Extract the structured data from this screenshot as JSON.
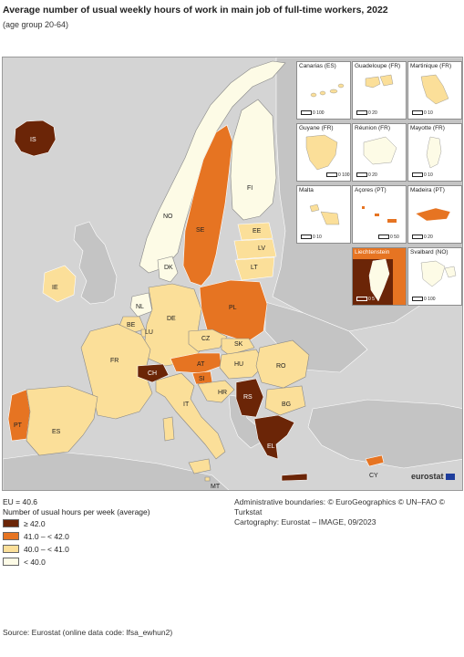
{
  "title": "Average number of usual weekly hours of work in main job of full-time workers, 2022",
  "subtitle": "(age group 20-64)",
  "colors": {
    "c1": "#6b2507",
    "c2": "#e67422",
    "c3": "#fbdf99",
    "c4": "#fdfbe6",
    "non_eu": "#c4c4c4",
    "sea": "#d4d4d4"
  },
  "legend": {
    "eu_value": "EU = 40.6",
    "heading": "Number of usual hours per week (average)",
    "classes": [
      {
        "label": "≥ 42.0",
        "color": "#6b2507"
      },
      {
        "label": "41.0 – < 42.0",
        "color": "#e67422"
      },
      {
        "label": "40.0 – < 41.0",
        "color": "#fbdf99"
      },
      {
        "label": "< 40.0",
        "color": "#fdfbe6"
      }
    ]
  },
  "countries": [
    {
      "code": "IS",
      "class": 1
    },
    {
      "code": "NO",
      "class": 4
    },
    {
      "code": "SE",
      "class": 2
    },
    {
      "code": "FI",
      "class": 4
    },
    {
      "code": "EE",
      "class": 3
    },
    {
      "code": "LV",
      "class": 3
    },
    {
      "code": "LT",
      "class": 3
    },
    {
      "code": "DK",
      "class": 4
    },
    {
      "code": "IE",
      "class": 3
    },
    {
      "code": "NL",
      "class": 4
    },
    {
      "code": "BE",
      "class": 3
    },
    {
      "code": "LU",
      "class": 3
    },
    {
      "code": "DE",
      "class": 3
    },
    {
      "code": "PL",
      "class": 2
    },
    {
      "code": "CZ",
      "class": 3
    },
    {
      "code": "SK",
      "class": 3
    },
    {
      "code": "FR",
      "class": 3
    },
    {
      "code": "CH",
      "class": 1
    },
    {
      "code": "AT",
      "class": 2
    },
    {
      "code": "SI",
      "class": 2
    },
    {
      "code": "HU",
      "class": 3
    },
    {
      "code": "RO",
      "class": 3
    },
    {
      "code": "HR",
      "class": 3
    },
    {
      "code": "RS",
      "class": 1
    },
    {
      "code": "BG",
      "class": 3
    },
    {
      "code": "IT",
      "class": 3
    },
    {
      "code": "PT",
      "class": 2
    },
    {
      "code": "ES",
      "class": 3
    },
    {
      "code": "EL",
      "class": 1
    },
    {
      "code": "CY",
      "class": 2
    },
    {
      "code": "MT",
      "class": 3
    }
  ],
  "insets": [
    {
      "name": "Canarias (ES)",
      "scale": "0  100"
    },
    {
      "name": "Guadeloupe (FR)",
      "scale": "0  20"
    },
    {
      "name": "Martinique (FR)",
      "scale": "0  10"
    },
    {
      "name": "Guyane (FR)",
      "scale": "0  100"
    },
    {
      "name": "Réunion (FR)",
      "scale": "0  20"
    },
    {
      "name": "Mayotte (FR)",
      "scale": "0  10"
    },
    {
      "name": "Malta",
      "scale": "0  10"
    },
    {
      "name": "Açores (PT)",
      "scale": "0  50"
    },
    {
      "name": "Madeira (PT)",
      "scale": "0  20"
    },
    {
      "name": "Liechtenstein",
      "scale": "0  5"
    },
    {
      "name": "Svalbard (NO)",
      "scale": "0  100"
    }
  ],
  "logo": "eurostat",
  "credits": {
    "line1": "Administrative boundaries: © EuroGeographics © UN–FAO © Turkstat",
    "line2": "Cartography: Eurostat – IMAGE, 09/2023"
  },
  "source": "Source: Eurostat (online data code: lfsa_ewhun2)"
}
